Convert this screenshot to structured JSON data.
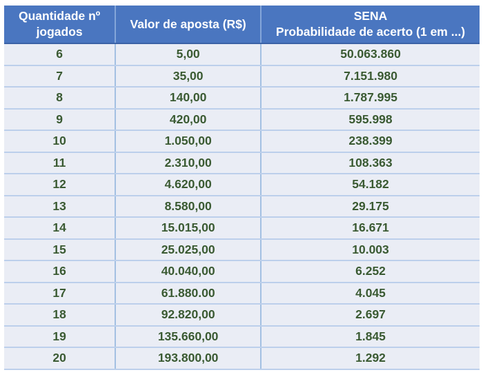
{
  "chart_data": {
    "type": "table",
    "columns": [
      "Quantidade nº\njogados",
      "Valor de aposta (R$)",
      "SENA\nProbabilidade de acerto (1 em ...)"
    ],
    "rows": [
      [
        "6",
        "5,00",
        "50.063.860"
      ],
      [
        "7",
        "35,00",
        "7.151.980"
      ],
      [
        "8",
        "140,00",
        "1.787.995"
      ],
      [
        "9",
        "420,00",
        "595.998"
      ],
      [
        "10",
        "1.050,00",
        "238.399"
      ],
      [
        "11",
        "2.310,00",
        "108.363"
      ],
      [
        "12",
        "4.620,00",
        "54.182"
      ],
      [
        "13",
        "8.580,00",
        "29.175"
      ],
      [
        "14",
        "15.015,00",
        "16.671"
      ],
      [
        "15",
        "25.025,00",
        "10.003"
      ],
      [
        "16",
        "40.040,00",
        "6.252"
      ],
      [
        "17",
        "61.880.00",
        "4.045"
      ],
      [
        "18",
        "92.820,00",
        "2.697"
      ],
      [
        "19",
        "135.660,00",
        "1.845"
      ],
      [
        "20",
        "193.800,00",
        "1.292"
      ]
    ]
  },
  "colors": {
    "page_bg": "#ffffff",
    "header_bg": "#4a76c0",
    "header_text": "#ffffff",
    "header_bottom_line": "#3b62a6",
    "header_column_divider": "#84a6d9",
    "row_bg": "#eaedf5",
    "row_divider": "#bccfeb",
    "column_divider": "#a3c0e2",
    "value_text": "#3a5a32"
  }
}
